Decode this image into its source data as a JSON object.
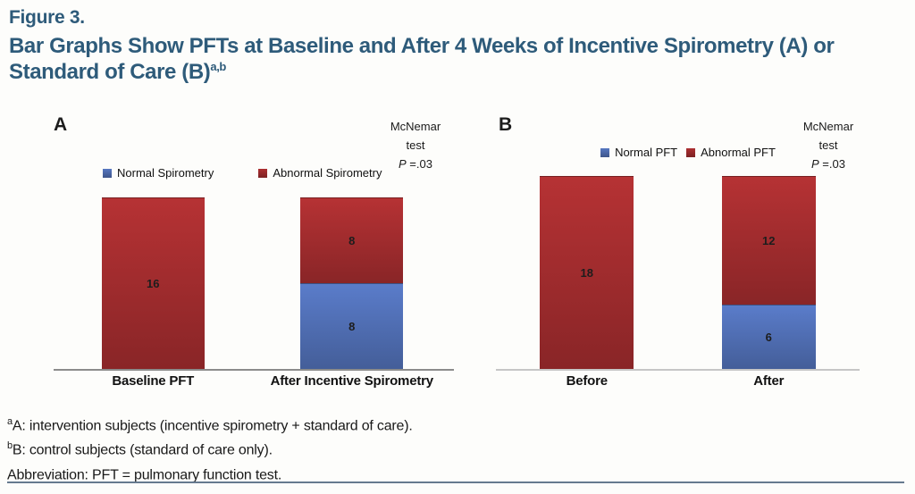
{
  "figure": {
    "eyebrow": "Figure 3.",
    "title": "Bar Graphs Show PFTs at Baseline and After 4 Weeks of Incentive Spirometry (A) or Standard of Care (B)",
    "title_sup": "a,b"
  },
  "colors": {
    "accent": "#2E5B7A",
    "normal_blue": "#5271B8",
    "abnormal_red": "#A52D2F",
    "axis_a": "#8c8c8c",
    "axis_b": "#c6c6c6",
    "bottom_rule": "#667A8F"
  },
  "chart_data": [
    {
      "type": "bar",
      "stacked": true,
      "panel_label": "A",
      "grid": false,
      "legend_position": "top",
      "annotation_lines": [
        "McNemar",
        "test",
        "P =.03"
      ],
      "categories": [
        "Baseline PFT",
        "After Incentive Spirometry"
      ],
      "series": [
        {
          "name": "Normal Spirometry",
          "color": "#5271B8",
          "values": [
            0,
            8
          ]
        },
        {
          "name": "Abnormal Spirometry",
          "color": "#A52D2F",
          "values": [
            16,
            8
          ]
        }
      ],
      "ylim": [
        0,
        16
      ],
      "value_labels": true
    },
    {
      "type": "bar",
      "stacked": true,
      "panel_label": "B",
      "grid": false,
      "legend_position": "top",
      "annotation_lines": [
        "McNemar",
        "test",
        "P =.03"
      ],
      "categories": [
        "Before",
        "After"
      ],
      "series": [
        {
          "name": "Normal PFT",
          "color": "#5271B8",
          "values": [
            0,
            6
          ]
        },
        {
          "name": "Abnormal PFT",
          "color": "#A52D2F",
          "values": [
            18,
            12
          ]
        }
      ],
      "ylim": [
        0,
        18
      ],
      "value_labels": true
    }
  ],
  "footnotes": [
    {
      "sup": "a",
      "text": "A: intervention subjects (incentive spirometry + standard of care)."
    },
    {
      "sup": "b",
      "text": "B: control subjects (standard of care only)."
    },
    {
      "sup": "",
      "text": "Abbreviation: PFT = pulmonary function test."
    }
  ]
}
